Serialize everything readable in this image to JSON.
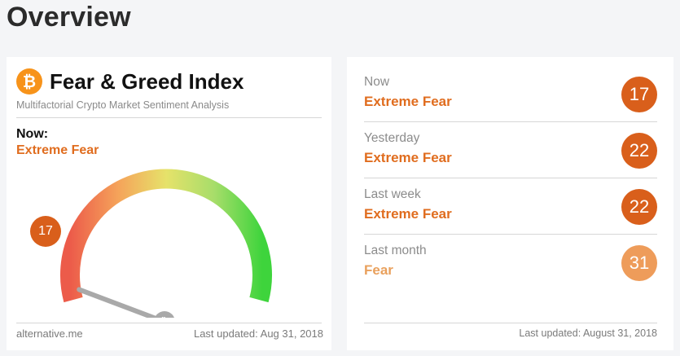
{
  "page": {
    "title": "Overview"
  },
  "index_card": {
    "logo_glyph": "₿",
    "title": "Fear & Greed Index",
    "subtitle": "Multifactorial Crypto Market Sentiment Analysis",
    "now_label": "Now:",
    "now_classification": "Extreme Fear",
    "value": "17",
    "value_fraction": 0.17,
    "source": "alternative.me",
    "last_updated": "Last updated: Aug 31, 2018",
    "colors": {
      "fear": "#e06d1f",
      "bubble": "#d95f1b",
      "needle": "#a9a9a9"
    }
  },
  "history_card": {
    "rows": [
      {
        "label": "Now",
        "classification": "Extreme Fear",
        "value": "17",
        "color": "#d95f1b",
        "text_color": "#e06d1f"
      },
      {
        "label": "Yesterday",
        "classification": "Extreme Fear",
        "value": "22",
        "color": "#d95f1b",
        "text_color": "#e06d1f"
      },
      {
        "label": "Last week",
        "classification": "Extreme Fear",
        "value": "22",
        "color": "#d95f1b",
        "text_color": "#e06d1f"
      },
      {
        "label": "Last month",
        "classification": "Fear",
        "value": "31",
        "color": "#ee9c5a",
        "text_color": "#e9a05c"
      }
    ],
    "last_updated": "Last updated: August 31, 2018"
  }
}
